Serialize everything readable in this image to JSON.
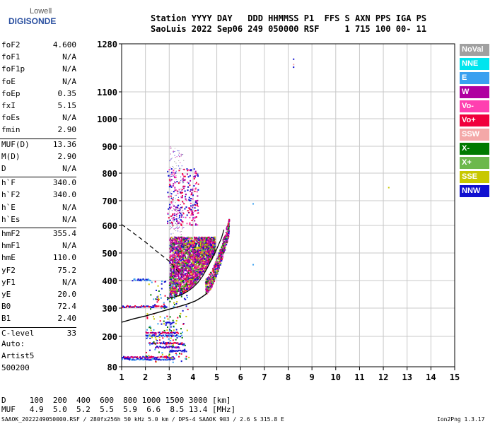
{
  "logo": {
    "line1": "Lowell",
    "line2": "DIGISONDE"
  },
  "header": {
    "line1": "Station YYYY DAY   DDD HHMMSS P1  FFS S AXN PPS IGA PS",
    "line2": "SaoLuis 2022 Sep06 249 050000 RSF     1 715 100 00- 11"
  },
  "params": [
    {
      "label": "foF2",
      "value": "4.600"
    },
    {
      "label": "foF1",
      "value": "N/A"
    },
    {
      "label": "foF1p",
      "value": "N/A"
    },
    {
      "label": "foE",
      "value": "N/A"
    },
    {
      "label": "foEp",
      "value": "0.35"
    },
    {
      "label": "fxI",
      "value": "5.15"
    },
    {
      "label": "foEs",
      "value": "N/A"
    },
    {
      "label": "fmin",
      "value": "2.90"
    },
    {
      "label": "MUF(D)",
      "value": "13.36"
    },
    {
      "label": "M(D)",
      "value": "2.90"
    },
    {
      "label": "D",
      "value": "N/A"
    },
    {
      "label": "h`F",
      "value": "340.0"
    },
    {
      "label": "h`F2",
      "value": "340.0"
    },
    {
      "label": "h`E",
      "value": "N/A"
    },
    {
      "label": "h`Es",
      "value": "N/A"
    },
    {
      "label": "hmF2",
      "value": "355.4"
    },
    {
      "label": "hmF1",
      "value": "N/A"
    },
    {
      "label": "hmE",
      "value": "110.0"
    },
    {
      "label": "yF2",
      "value": "75.2"
    },
    {
      "label": "yF1",
      "value": "N/A"
    },
    {
      "label": "yE",
      "value": "20.0"
    },
    {
      "label": "B0",
      "value": "72.4"
    },
    {
      "label": "B1",
      "value": "2.40"
    },
    {
      "label": "C-level",
      "value": "33"
    }
  ],
  "auto": {
    "line1": "Auto:",
    "line2": "Artist5",
    "line3": "500200"
  },
  "footer": {
    "line1": "D     100  200  400  600  800 1000 1500 3000 [km]",
    "line2": "MUF   4.9  5.0  5.2  5.5  5.9  6.6  8.5 13.4 [MHz]",
    "line3": "SAAOK_2022249050000.RSF / 280fx256h 50 kHz 5.0 km / DPS-4 SAAOK 903 / 2.6 S 315.8 E",
    "version": "Ion2Png 1.3.17"
  },
  "legend": [
    {
      "name": "NoVal",
      "color": "#a0a0a0"
    },
    {
      "name": "NNE",
      "color": "#00e5ee"
    },
    {
      "name": "E",
      "color": "#3aa0f0"
    },
    {
      "name": "W",
      "color": "#b000a0"
    },
    {
      "name": "Vo-",
      "color": "#ff40b0"
    },
    {
      "name": "Vo+",
      "color": "#f0003c"
    },
    {
      "name": "SSW",
      "color": "#f4a8a8"
    },
    {
      "name": "X-",
      "color": "#007a00"
    },
    {
      "name": "X+",
      "color": "#6cb84c"
    },
    {
      "name": "SSE",
      "color": "#c8c800"
    },
    {
      "name": "NNW",
      "color": "#1010d0"
    }
  ],
  "chart_data": {
    "type": "scatter",
    "xlim": [
      1,
      15
    ],
    "ylim": [
      80,
      1280
    ],
    "x_ticks": [
      "1",
      "2",
      "3",
      "4",
      "5",
      "6",
      "7",
      "8",
      "9",
      "10",
      "11",
      "12",
      "13",
      "14",
      "15"
    ],
    "y_ticks": [
      "80",
      "200",
      "300",
      "400",
      "500",
      "600",
      "700",
      "800",
      "900",
      "1000",
      "1100",
      "1280"
    ],
    "y_tick_values": [
      80,
      200,
      300,
      400,
      500,
      600,
      700,
      800,
      900,
      1000,
      1100,
      1280
    ],
    "grid": true,
    "traces": {
      "true_height_profile": [
        [
          1.0,
          250
        ],
        [
          1.5,
          262
        ],
        [
          2.0,
          272
        ],
        [
          2.5,
          284
        ],
        [
          3.0,
          296
        ],
        [
          3.5,
          308
        ],
        [
          3.8,
          316
        ],
        [
          4.1,
          326
        ],
        [
          4.3,
          336
        ],
        [
          4.5,
          348
        ],
        [
          4.6,
          356
        ]
      ],
      "f2_trace_echoes": [
        [
          2.9,
          340
        ],
        [
          3.0,
          336
        ],
        [
          3.2,
          340
        ],
        [
          3.4,
          345
        ],
        [
          3.6,
          352
        ],
        [
          3.8,
          362
        ],
        [
          4.0,
          375
        ],
        [
          4.2,
          392
        ],
        [
          4.4,
          415
        ],
        [
          4.6,
          445
        ],
        [
          4.8,
          480
        ],
        [
          5.0,
          515
        ],
        [
          5.2,
          555
        ],
        [
          5.3,
          585
        ]
      ],
      "dashed_extrapolation": [
        [
          1.0,
          604
        ],
        [
          1.5,
          572
        ],
        [
          2.0,
          540
        ],
        [
          2.5,
          504
        ],
        [
          3.0,
          470
        ],
        [
          3.3,
          440
        ],
        [
          3.5,
          420
        ]
      ]
    },
    "isolated_points": [
      {
        "x": 8.2,
        "y": 1225,
        "series": "NNW"
      },
      {
        "x": 8.2,
        "y": 1205,
        "series": "SSW"
      },
      {
        "x": 8.2,
        "y": 1195,
        "series": "NNW"
      },
      {
        "x": 6.5,
        "y": 690,
        "series": "E"
      },
      {
        "x": 6.5,
        "y": 460,
        "series": "E"
      },
      {
        "x": 12.2,
        "y": 750,
        "series": "SSE"
      }
    ]
  }
}
